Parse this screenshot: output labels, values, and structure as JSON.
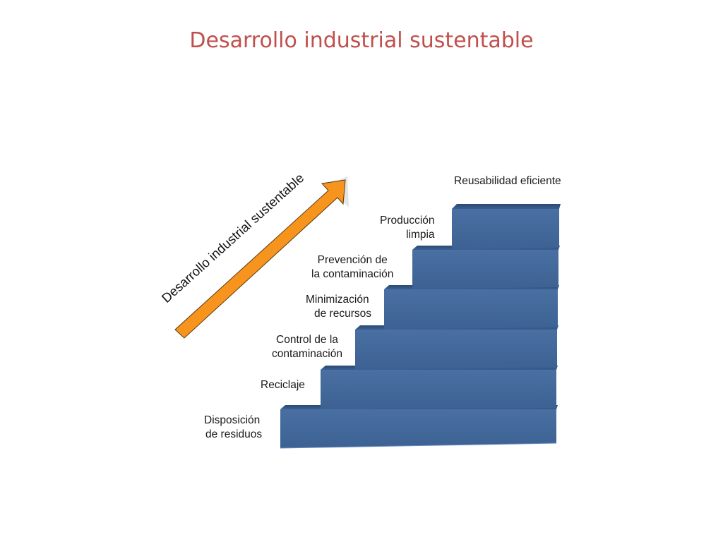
{
  "slide": {
    "title": "Desarrollo industrial sustentable"
  },
  "arrow": {
    "label": "Desarrollo industrial sustentable",
    "color": "#f7941d"
  },
  "stairs": {
    "color": "#3f6596",
    "steps": [
      {
        "line1": "Disposición",
        "line2": "de residuos"
      },
      {
        "line1": "Reciclaje",
        "line2": ""
      },
      {
        "line1": "Control de la",
        "line2": "contaminación"
      },
      {
        "line1": "Minimización",
        "line2": "de recursos"
      },
      {
        "line1": "Prevención de",
        "line2": "la contaminación"
      },
      {
        "line1": "Producción",
        "line2": "limpia"
      },
      {
        "line1": "Reusabilidad eficiente",
        "line2": ""
      }
    ]
  }
}
